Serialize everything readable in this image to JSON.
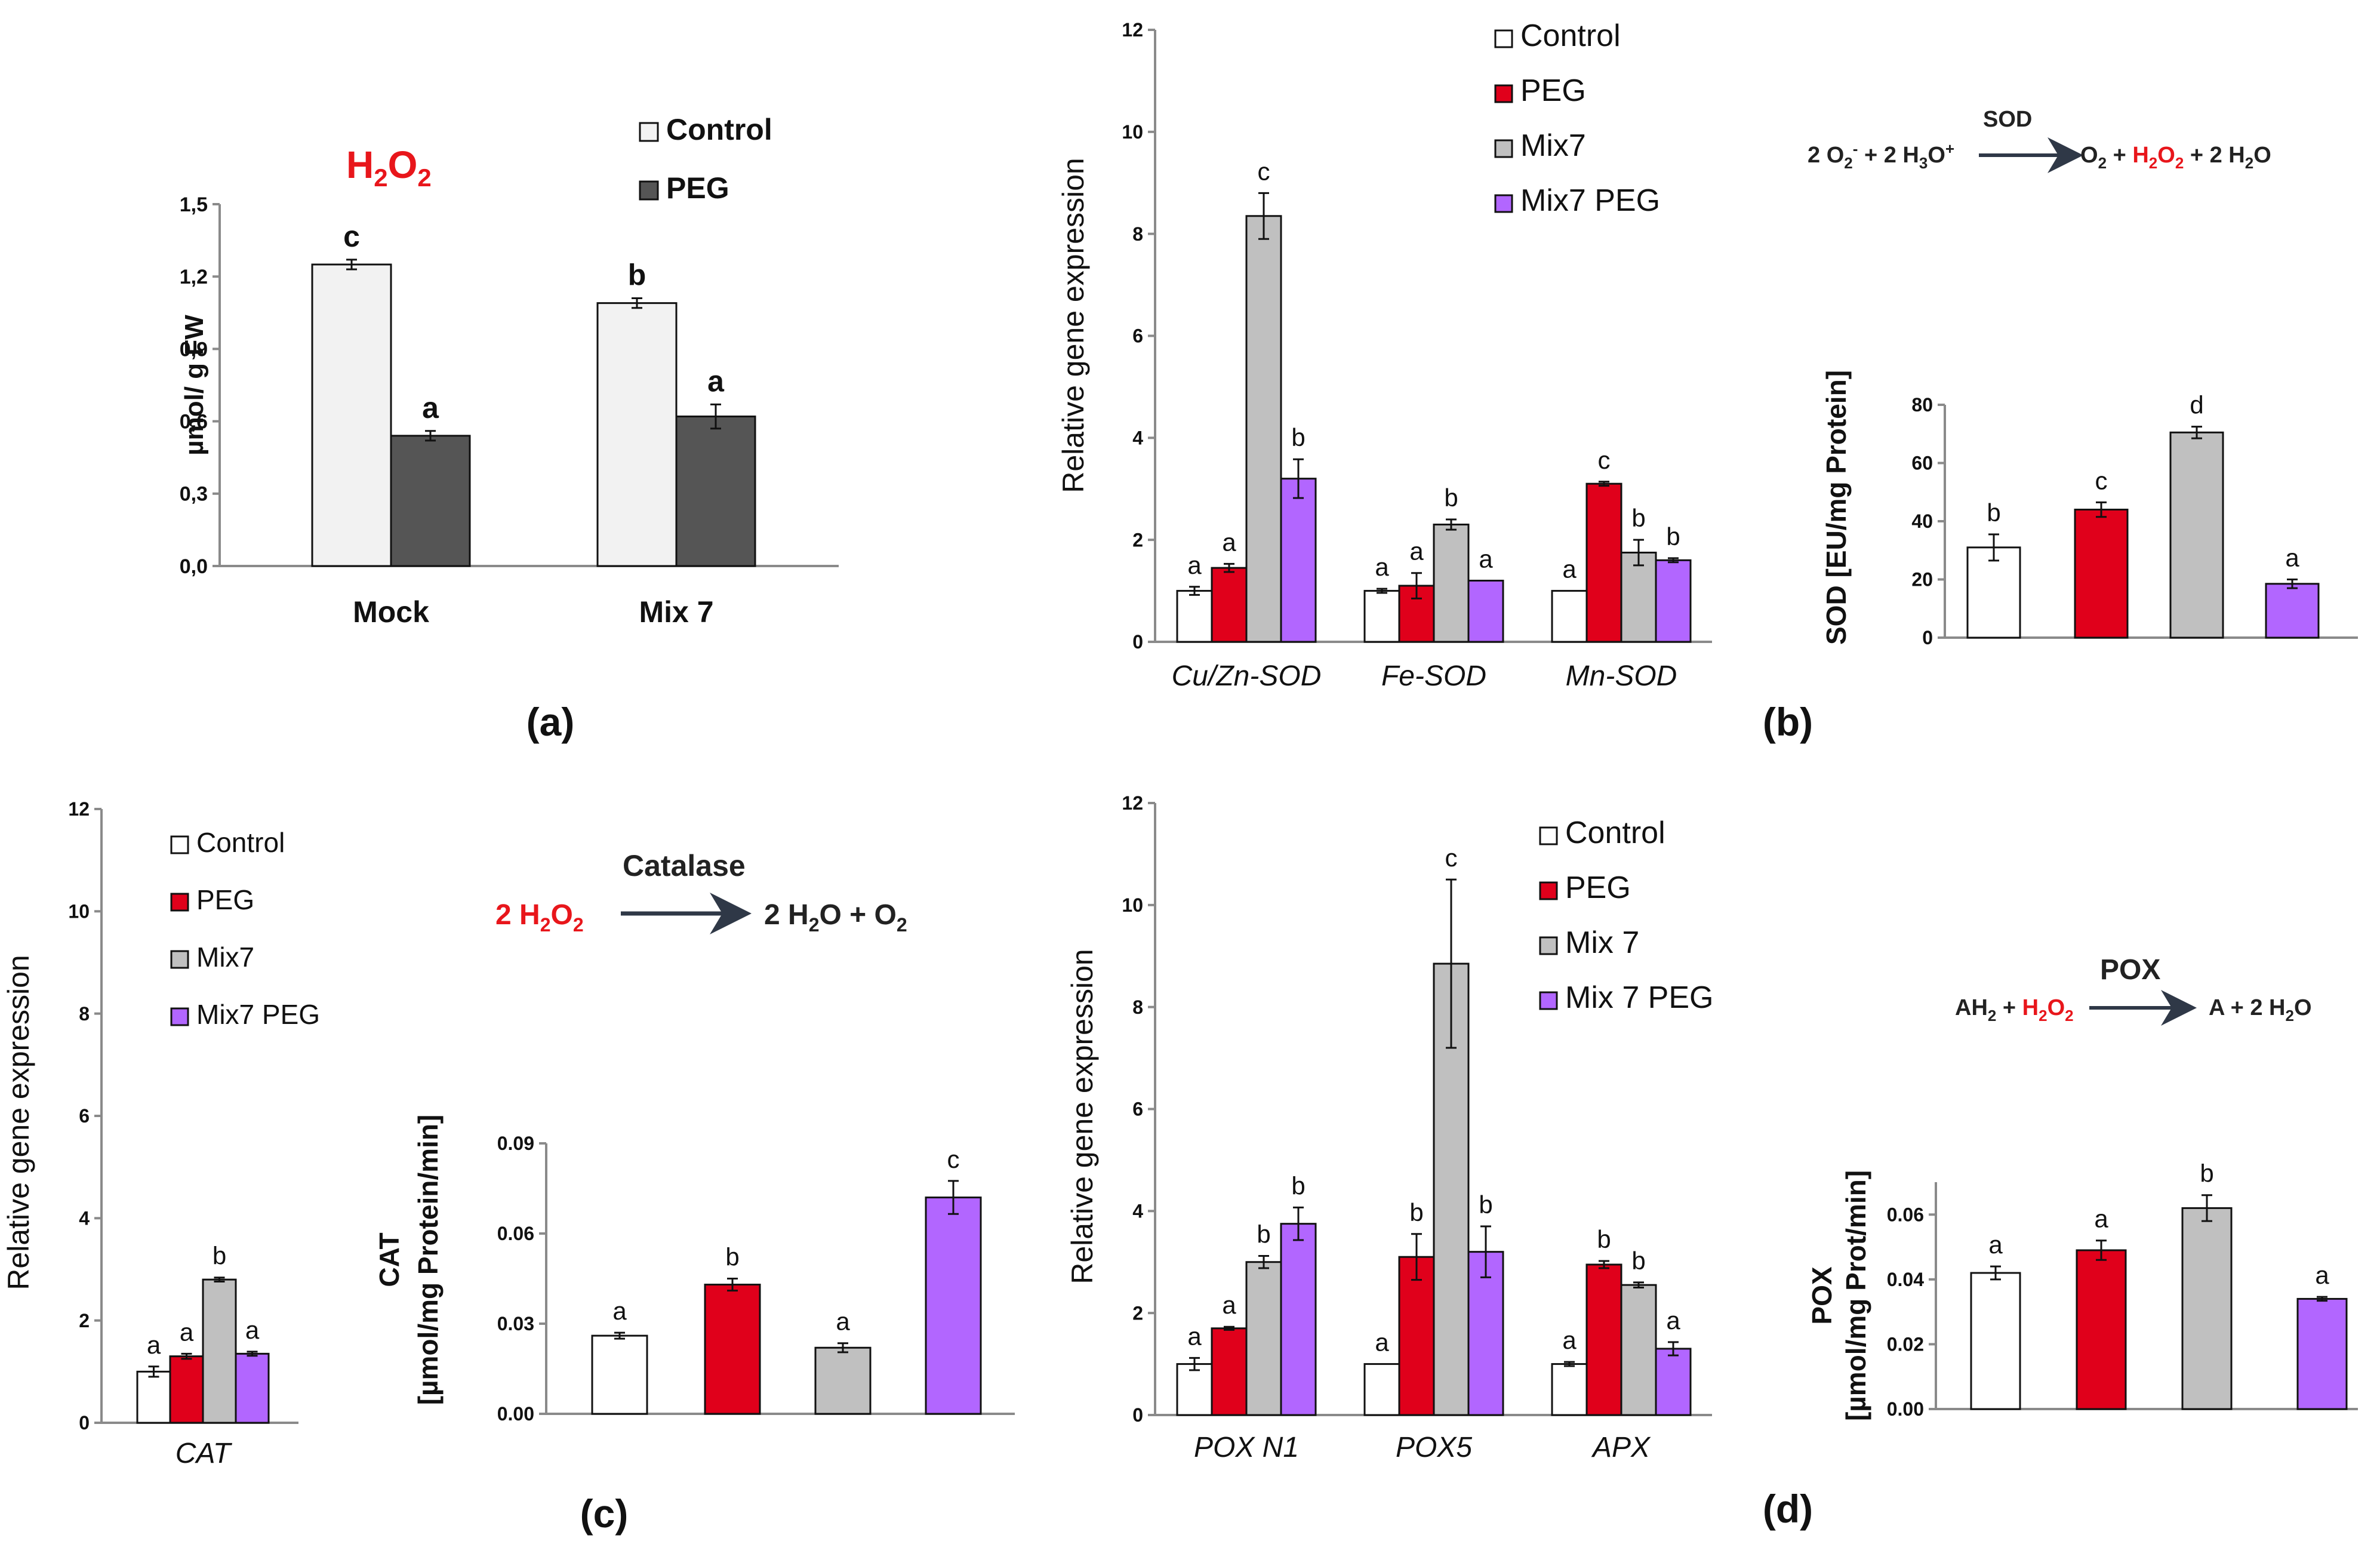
{
  "colors": {
    "control": "#ffffff",
    "peg_dark": "#555555",
    "control_light": "#f2f2f2",
    "peg": "#e0001b",
    "mix7": "#c0c0c0",
    "mix7_peg": "#b266ff",
    "h2o2_red": "#e8161b",
    "axis": "#8a8a8a",
    "arrow": "#2f3847"
  },
  "panel_labels": {
    "a": "(a)",
    "b": "(b)",
    "c": "(c)",
    "d": "(d)"
  },
  "reactions": {
    "b": {
      "enzyme": "SOD"
    },
    "c": {
      "enzyme": "Catalase"
    },
    "d": {
      "enzyme": "POX"
    }
  },
  "chart_data": [
    {
      "id": "a",
      "type": "bar",
      "title": "H2O2",
      "ylabel": "µmol/ g FW",
      "xlabel": "",
      "categories": [
        "Mock",
        "Mix 7"
      ],
      "series": [
        {
          "name": "Control",
          "values": [
            1.25,
            1.09
          ],
          "errors": [
            0.02,
            0.02
          ],
          "letters": [
            "c",
            "b"
          ]
        },
        {
          "name": "PEG",
          "values": [
            0.54,
            0.62
          ],
          "errors": [
            0.02,
            0.05
          ],
          "letters": [
            "a",
            "a"
          ]
        }
      ],
      "ylim": [
        0,
        1.5
      ],
      "yticks": [
        "0,0",
        "0,3",
        "0,6",
        "0,9",
        "1,2",
        "1,5"
      ],
      "legend": [
        "Control",
        "PEG"
      ]
    },
    {
      "id": "b1",
      "type": "bar",
      "ylabel": "Relative gene expression",
      "categories": [
        "Cu/Zn-SOD",
        "Fe-SOD",
        "Mn-SOD"
      ],
      "series": [
        {
          "name": "Control",
          "values": [
            1.0,
            1.0,
            1.0
          ],
          "errors": [
            0.08,
            0.04,
            0
          ],
          "letters": [
            "a",
            "a",
            "a"
          ]
        },
        {
          "name": "PEG",
          "values": [
            1.45,
            1.1,
            3.1
          ],
          "errors": [
            0.08,
            0.25,
            0.04
          ],
          "letters": [
            "a",
            "a",
            "c"
          ]
        },
        {
          "name": "Mix7",
          "values": [
            8.35,
            2.3,
            1.75
          ],
          "errors": [
            0.45,
            0.1,
            0.25
          ],
          "letters": [
            "c",
            "b",
            "b"
          ]
        },
        {
          "name": "Mix7  PEG",
          "values": [
            3.2,
            1.2,
            1.6
          ],
          "errors": [
            0.38,
            0,
            0.04
          ],
          "letters": [
            "b",
            "a",
            "b"
          ]
        }
      ],
      "ylim": [
        0,
        12
      ],
      "yticks": [
        "0",
        "2",
        "4",
        "6",
        "8",
        "10",
        "12"
      ],
      "legend": [
        "Control",
        "PEG",
        "Mix7",
        "Mix7  PEG"
      ]
    },
    {
      "id": "b2",
      "type": "bar",
      "ylabel": "SOD [EU/mg Protein]",
      "categories": [
        "Control",
        "PEG",
        "Mix7",
        "Mix7 PEG"
      ],
      "values": [
        31,
        44,
        70.5,
        18.5
      ],
      "errors": [
        4.5,
        2.5,
        2,
        1.5
      ],
      "letters": [
        "b",
        "c",
        "d",
        "a"
      ],
      "ylim": [
        0,
        80
      ],
      "yticks": [
        "0",
        "20",
        "40",
        "60",
        "80"
      ]
    },
    {
      "id": "c1",
      "type": "bar",
      "ylabel": "Relative gene expression",
      "categories": [
        "CAT"
      ],
      "series": [
        {
          "name": "Control",
          "values": [
            1.0
          ],
          "errors": [
            0.1
          ],
          "letters": [
            "a"
          ]
        },
        {
          "name": "PEG",
          "values": [
            1.3
          ],
          "errors": [
            0.05
          ],
          "letters": [
            "a"
          ]
        },
        {
          "name": "Mix7",
          "values": [
            2.8
          ],
          "errors": [
            0.04
          ],
          "letters": [
            "b"
          ]
        },
        {
          "name": "Mix7  PEG",
          "values": [
            1.35
          ],
          "errors": [
            0.04
          ],
          "letters": [
            "a"
          ]
        }
      ],
      "ylim": [
        0,
        12
      ],
      "yticks": [
        "0",
        "2",
        "4",
        "6",
        "8",
        "10",
        "12"
      ],
      "legend": [
        "Control",
        "PEG",
        "Mix7",
        "Mix7  PEG"
      ]
    },
    {
      "id": "c2",
      "type": "bar",
      "ylabel": "CAT",
      "ylabel2": "[µmol/mg Protein/min]",
      "categories": [
        "Control",
        "PEG",
        "Mix7",
        "Mix7 PEG"
      ],
      "values": [
        0.026,
        0.043,
        0.022,
        0.072
      ],
      "errors": [
        0.001,
        0.002,
        0.0015,
        0.0055
      ],
      "letters": [
        "a",
        "b",
        "a",
        "c"
      ],
      "ylim": [
        0,
        0.09
      ],
      "yticks": [
        "0.00",
        "0.03",
        "0.06",
        "0.09"
      ]
    },
    {
      "id": "d1",
      "type": "bar",
      "ylabel": "Relative gene expression",
      "categories": [
        "POX N1",
        "POX5",
        "APX"
      ],
      "series": [
        {
          "name": "Control",
          "values": [
            1.0,
            1.0,
            1.0
          ],
          "errors": [
            0.12,
            0,
            0.04
          ],
          "letters": [
            "a",
            "a",
            "a"
          ]
        },
        {
          "name": "PEG",
          "values": [
            1.7,
            3.1,
            2.95
          ],
          "errors": [
            0.03,
            0.45,
            0.07
          ],
          "letters": [
            "a",
            "b",
            "b"
          ]
        },
        {
          "name": "Mix 7",
          "values": [
            3.0,
            8.85,
            2.55
          ],
          "errors": [
            0.12,
            1.65,
            0.05
          ],
          "letters": [
            "b",
            "c",
            "b"
          ]
        },
        {
          "name": "Mix 7  PEG",
          "values": [
            3.75,
            3.2,
            1.3
          ],
          "errors": [
            0.32,
            0.5,
            0.13
          ],
          "letters": [
            "b",
            "b",
            "a"
          ]
        }
      ],
      "ylim": [
        0,
        12
      ],
      "yticks": [
        "0",
        "2",
        "4",
        "6",
        "8",
        "10",
        "12"
      ],
      "legend": [
        "Control",
        "PEG",
        "Mix 7",
        "Mix 7  PEG"
      ]
    },
    {
      "id": "d2",
      "type": "bar",
      "ylabel": "POX",
      "ylabel2": "[µmol/mg Prot/min]",
      "categories": [
        "Control",
        "PEG",
        "Mix7",
        "Mix7 PEG"
      ],
      "values": [
        0.042,
        0.049,
        0.062,
        0.034
      ],
      "errors": [
        0.002,
        0.003,
        0.004,
        0.0006
      ],
      "letters": [
        "a",
        "a",
        "b",
        "a"
      ],
      "ylim": [
        0,
        0.07
      ],
      "yticks": [
        "0.00",
        "0.02",
        "0.04",
        "0.06"
      ]
    }
  ]
}
